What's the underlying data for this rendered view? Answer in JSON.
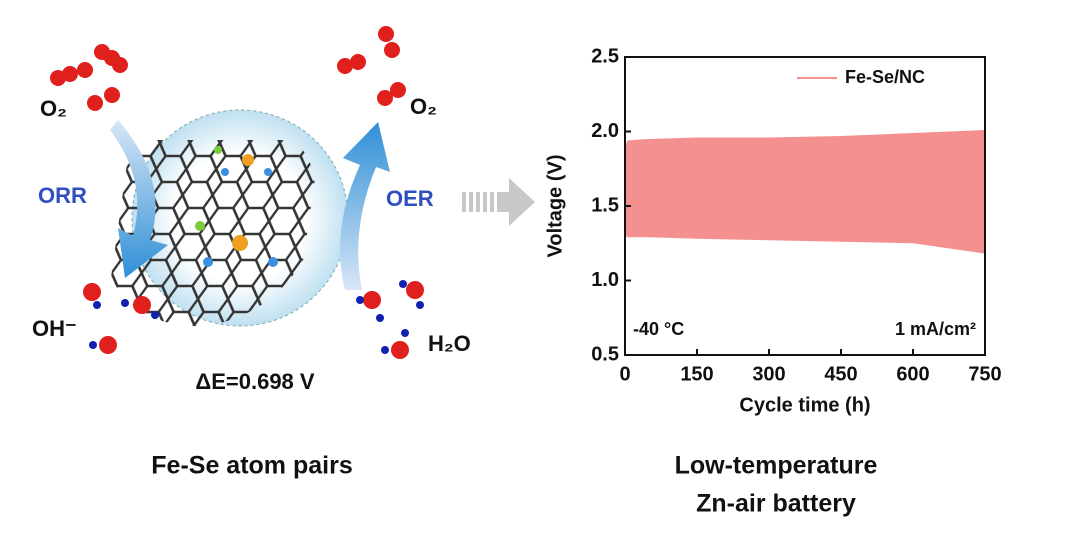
{
  "diagram": {
    "labels": {
      "o2_left": "O₂",
      "o2_right": "O₂",
      "orr": "ORR",
      "oer": "OER",
      "oh": "OH⁻",
      "h2o": "H₂O",
      "delta_e": "ΔE=0.698 V"
    },
    "captions": {
      "left": "Fe-Se atom pairs",
      "right_line1": "Low-temperature",
      "right_line2": "Zn-air battery"
    }
  },
  "chart_data": {
    "type": "range",
    "x_label": "Cycle time (h)",
    "y_label": "Voltage (V)",
    "annotations": [
      "-40 °C",
      "1 mA/cm²"
    ],
    "series": [
      {
        "name": "Fe-Se/NC",
        "color": "#f4908f",
        "x": [
          0,
          5,
          50,
          150,
          300,
          450,
          600,
          750
        ],
        "upper": [
          1.9,
          1.94,
          1.95,
          1.96,
          1.96,
          1.97,
          1.99,
          2.01
        ],
        "lower": [
          1.3,
          1.29,
          1.29,
          1.28,
          1.27,
          1.26,
          1.25,
          1.18
        ]
      }
    ],
    "xlim": [
      0,
      750
    ],
    "xticks": [
      0,
      150,
      300,
      450,
      600,
      750
    ],
    "ylim": [
      0.5,
      2.5
    ],
    "yticks": [
      0.5,
      {
        "value": 1,
        "label": "1.0"
      },
      1.5,
      {
        "value": 2,
        "label": "2.0"
      },
      2.5
    ],
    "legend": "upper-right"
  }
}
